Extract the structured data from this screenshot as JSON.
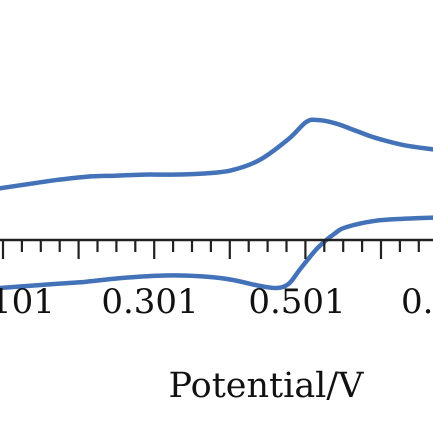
{
  "chart_data": {
    "type": "line",
    "xlabel": "Potential/V",
    "ylabel": "",
    "x_tick_labels": [
      "101",
      "0.301",
      "0.501",
      "0."
    ],
    "xlim": [
      0.0,
      0.75
    ],
    "ylim": [
      -1.0,
      1.0
    ],
    "grid": false,
    "series": [
      {
        "x": [
          0.0,
          0.05,
          0.1,
          0.15,
          0.2,
          0.25,
          0.3,
          0.35,
          0.4,
          0.45,
          0.5,
          0.53,
          0.55,
          0.58,
          0.62,
          0.65,
          0.7,
          0.75
        ],
        "y": [
          0.35,
          0.39,
          0.43,
          0.46,
          0.47,
          0.48,
          0.48,
          0.49,
          0.52,
          0.62,
          0.82,
          0.98,
          1.0,
          0.97,
          0.89,
          0.83,
          0.76,
          0.72
        ],
        "color": "#4472b8"
      },
      {
        "x": [
          0.0,
          0.05,
          0.1,
          0.15,
          0.2,
          0.25,
          0.3,
          0.35,
          0.4,
          0.45,
          0.48,
          0.5,
          0.52,
          0.55,
          0.58,
          0.6,
          0.65,
          0.7,
          0.75
        ],
        "y": [
          -0.6,
          -0.58,
          -0.56,
          -0.54,
          -0.51,
          -0.49,
          -0.48,
          -0.49,
          -0.52,
          -0.58,
          -0.6,
          -0.56,
          -0.42,
          -0.22,
          -0.08,
          -0.02,
          0.04,
          0.06,
          0.07
        ],
        "color": "#4472b8"
      }
    ]
  }
}
